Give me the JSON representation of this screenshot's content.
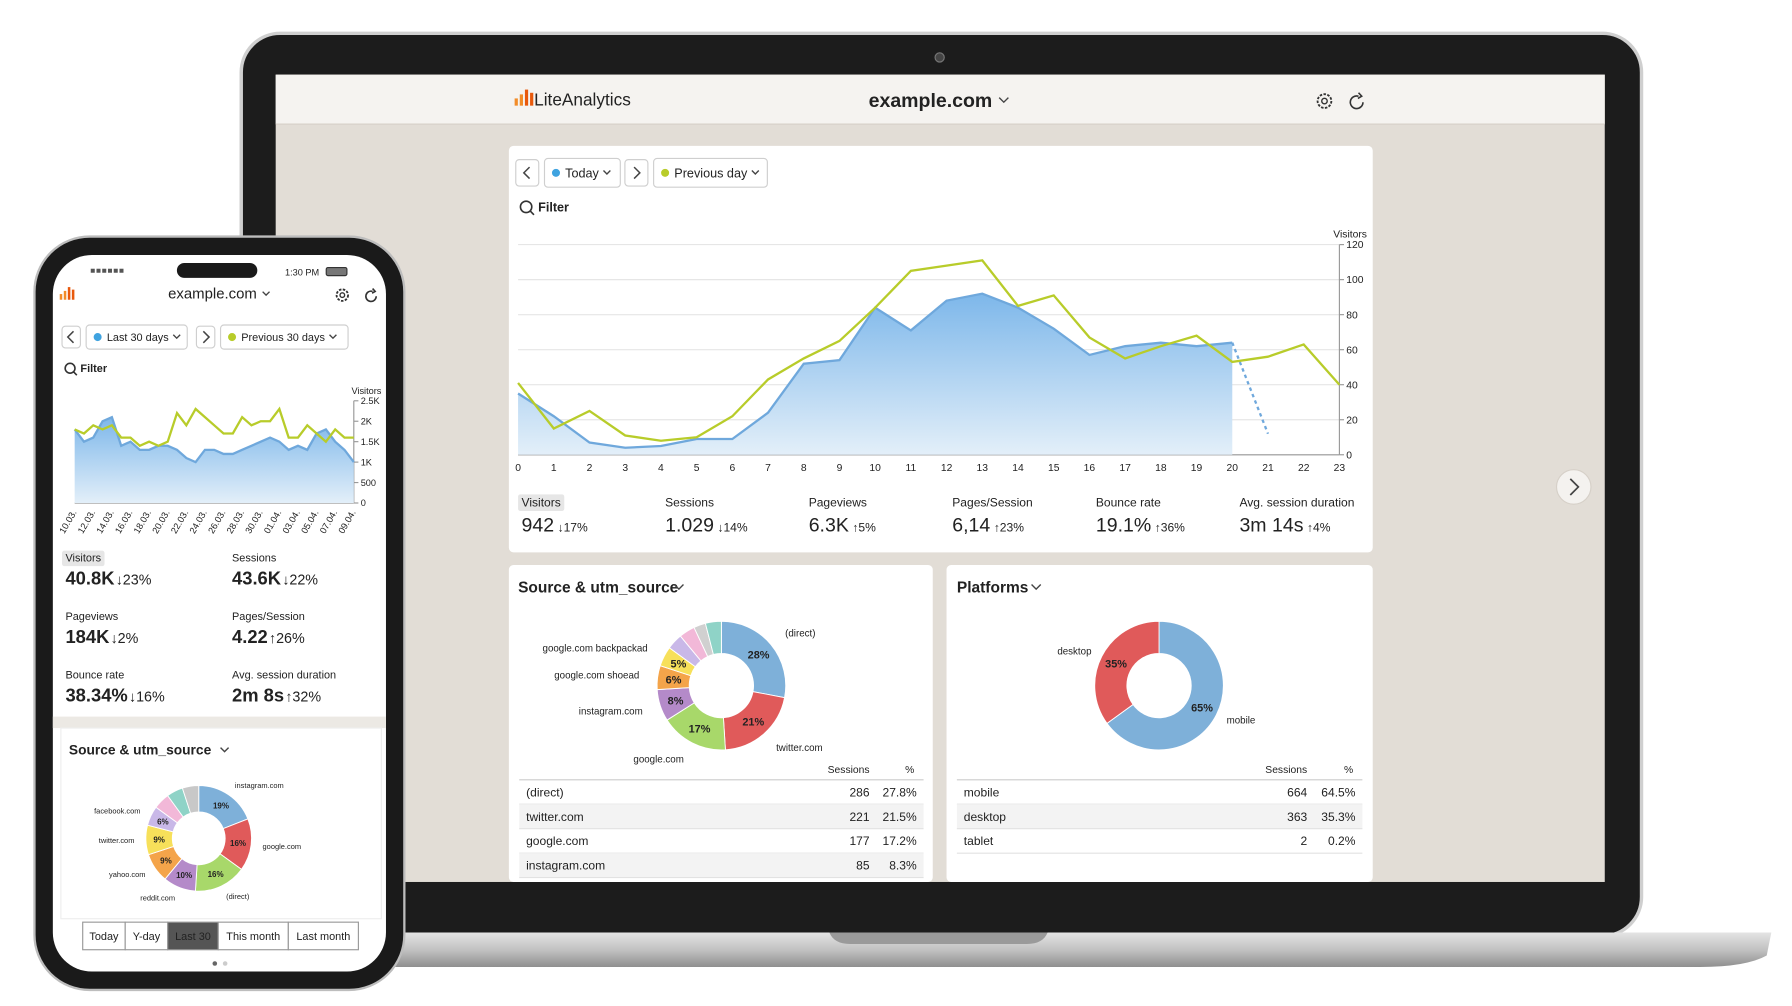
{
  "laptop": {
    "header": {
      "brand": "LiteAnalytics",
      "site": "example.com"
    },
    "controls": {
      "period": "Today",
      "compare": "Previous day",
      "filter": "Filter"
    },
    "chart": {
      "type": "area",
      "y_label": "Visitors",
      "x": [
        0,
        1,
        2,
        3,
        4,
        5,
        6,
        7,
        8,
        9,
        10,
        11,
        12,
        13,
        14,
        15,
        16,
        17,
        18,
        19,
        20,
        21,
        22,
        23
      ],
      "xlim": [
        0,
        23
      ],
      "ylim": [
        0,
        120
      ],
      "yticks": [
        0,
        20,
        40,
        60,
        80,
        100,
        120
      ],
      "grid": true,
      "series": [
        {
          "color": "#6fa8dc",
          "dashed_last": true,
          "values": [
            35,
            22,
            7,
            4,
            5,
            9,
            9,
            24,
            52,
            54,
            84,
            71,
            88,
            92,
            84,
            72,
            57,
            62,
            64,
            62,
            64,
            12,
            null,
            null
          ]
        },
        {
          "color": "#b8cc2a",
          "values": [
            41,
            15,
            25,
            11,
            8,
            10,
            22,
            43,
            55,
            65,
            84,
            105,
            108,
            111,
            85,
            91,
            67,
            55,
            62,
            68,
            53,
            56,
            63,
            40
          ]
        }
      ]
    },
    "metrics": [
      {
        "label": "Visitors",
        "value": 942,
        "change": "↓17%",
        "trend": "down"
      },
      {
        "label": "Sessions",
        "value": "1.029",
        "change": "↓14%",
        "trend": "down"
      },
      {
        "label": "Pageviews",
        "value": "6.3K",
        "change": "↑5%",
        "trend": "up"
      },
      {
        "label": "Pages/Session",
        "value": "6,14",
        "change": "↑23%",
        "trend": "up"
      },
      {
        "label": "Bounce rate",
        "value": "19.1%",
        "change": "↑36%",
        "trend": "up"
      },
      {
        "label": "Avg. session duration",
        "value": "3m 14s",
        "change": "↑4%",
        "trend": "up"
      }
    ],
    "source": {
      "title": "Source & utm_source",
      "donut": {
        "type": "pie",
        "labels": [
          "(direct)",
          "twitter.com",
          "google.com",
          "instagram.com",
          "google.com shoead",
          "google.com backpackad",
          null,
          null,
          null,
          null
        ],
        "values": [
          28,
          21,
          17,
          8,
          6,
          5,
          4,
          4,
          3,
          4
        ],
        "value_labels": [
          "28%",
          "21%",
          "17%",
          "8%",
          "6%",
          "5%",
          null,
          null,
          null,
          null
        ],
        "colors": [
          "#7eb0d9",
          "#e05a5a",
          "#a8d86a",
          "#b48ac9",
          "#f4a44a",
          "#f7e05a",
          "#c9b8e8",
          "#f2b8d8",
          "#d0d0d0",
          "#8fd3c7"
        ]
      },
      "table": {
        "columns": [
          "Sessions",
          "%"
        ],
        "rows": [
          [
            "(direct)",
            286,
            "27.8%"
          ],
          [
            "twitter.com",
            221,
            "21.5%"
          ],
          [
            "google.com",
            177,
            "17.2%"
          ],
          [
            "instagram.com",
            85,
            "8.3%"
          ]
        ]
      }
    },
    "platforms": {
      "title": "Platforms",
      "donut": {
        "type": "pie",
        "labels": [
          "mobile",
          "desktop"
        ],
        "values": [
          65,
          35
        ],
        "value_labels": [
          "65%",
          "35%"
        ],
        "colors": [
          "#7eb0d9",
          "#e05a5a"
        ]
      },
      "table": {
        "columns": [
          "Sessions",
          "%"
        ],
        "rows": [
          [
            "mobile",
            664,
            "64.5%"
          ],
          [
            "desktop",
            363,
            "35.3%"
          ],
          [
            "tablet",
            2,
            "0.2%"
          ]
        ]
      }
    }
  },
  "phone": {
    "status": {
      "time": "1:30 PM"
    },
    "header": {
      "site": "example.com"
    },
    "controls": {
      "period": "Last 30 days",
      "compare": "Previous 30 days",
      "filter": "Filter"
    },
    "chart": {
      "type": "area",
      "y_label": "Visitors",
      "categories": [
        "10.03.",
        null,
        "12.03.",
        null,
        "14.03.",
        null,
        "16.03.",
        null,
        "18.03.",
        null,
        "20.03.",
        null,
        "22.03.",
        null,
        "24.03.",
        null,
        "26.03.",
        null,
        "28.03.",
        null,
        "30.03.",
        null,
        "01.04.",
        null,
        "03.04.",
        null,
        "05.04.",
        null,
        "07.04.",
        null,
        "09.04."
      ],
      "ylim": [
        0,
        2500
      ],
      "yticks": [
        0,
        500,
        {
          "value": 1000,
          "label": "1K"
        },
        {
          "value": 1500,
          "label": "1.5K"
        },
        {
          "value": 2000,
          "label": "2K"
        },
        {
          "value": 2500,
          "label": "2.5K"
        }
      ],
      "grid": false,
      "series": [
        {
          "color": "#6fa8dc",
          "values": [
            1800,
            1500,
            1600,
            2000,
            2100,
            1400,
            1500,
            1300,
            1300,
            1400,
            1400,
            1300,
            1100,
            1000,
            1300,
            1300,
            1200,
            1200,
            1300,
            1400,
            1500,
            1600,
            1500,
            1300,
            1400,
            1300,
            1700,
            1800,
            1500,
            1300,
            1000
          ]
        },
        {
          "color": "#b8cc2a",
          "values": [
            1800,
            1700,
            1900,
            1800,
            1900,
            1600,
            1600,
            1400,
            1500,
            1400,
            1500,
            2200,
            1900,
            2300,
            2100,
            1900,
            1700,
            1700,
            2100,
            1900,
            2000,
            2000,
            2300,
            1600,
            1600,
            1900,
            1700,
            1500,
            1800,
            1600,
            1600
          ]
        }
      ]
    },
    "metrics": [
      {
        "label": "Visitors",
        "value": "40.8K",
        "change": "↓23%",
        "trend": "down"
      },
      {
        "label": "Sessions",
        "value": "43.6K",
        "change": "↓22%",
        "trend": "down"
      },
      {
        "label": "Pageviews",
        "value": "184K",
        "change": "↓2%",
        "trend": "down"
      },
      {
        "label": "Pages/Session",
        "value": 4.22,
        "change": "↑26%",
        "trend": "up"
      },
      {
        "label": "Bounce rate",
        "value": "38.34%",
        "change": "↓16%",
        "trend": "down"
      },
      {
        "label": "Avg. session duration",
        "value": "2m 8s",
        "change": "↑32%",
        "trend": "up"
      }
    ],
    "source": {
      "title": "Source & utm_source",
      "donut": {
        "type": "pie",
        "labels": [
          "instagram.com",
          "google.com",
          "(direct)",
          "reddit.com",
          "yahoo.com",
          "twitter.com",
          "facebook.com",
          null,
          null,
          null
        ],
        "values": [
          19,
          16,
          16,
          10,
          9,
          9,
          6,
          5,
          5,
          5
        ],
        "value_labels": [
          "19%",
          "16%",
          "16%",
          "10%",
          "9%",
          "9%",
          "6%",
          null,
          null,
          null
        ],
        "colors": [
          "#7eb0d9",
          "#e05a5a",
          "#a8d86a",
          "#b48ac9",
          "#f4a44a",
          "#f7e05a",
          "#c9b8e8",
          "#f2b8d8",
          "#8fd3c7",
          "#c8c8c8"
        ]
      }
    },
    "tabs": {
      "items": [
        "Today",
        "Y-day",
        "Last 30",
        "This month",
        "Last month"
      ],
      "active": 2
    }
  }
}
